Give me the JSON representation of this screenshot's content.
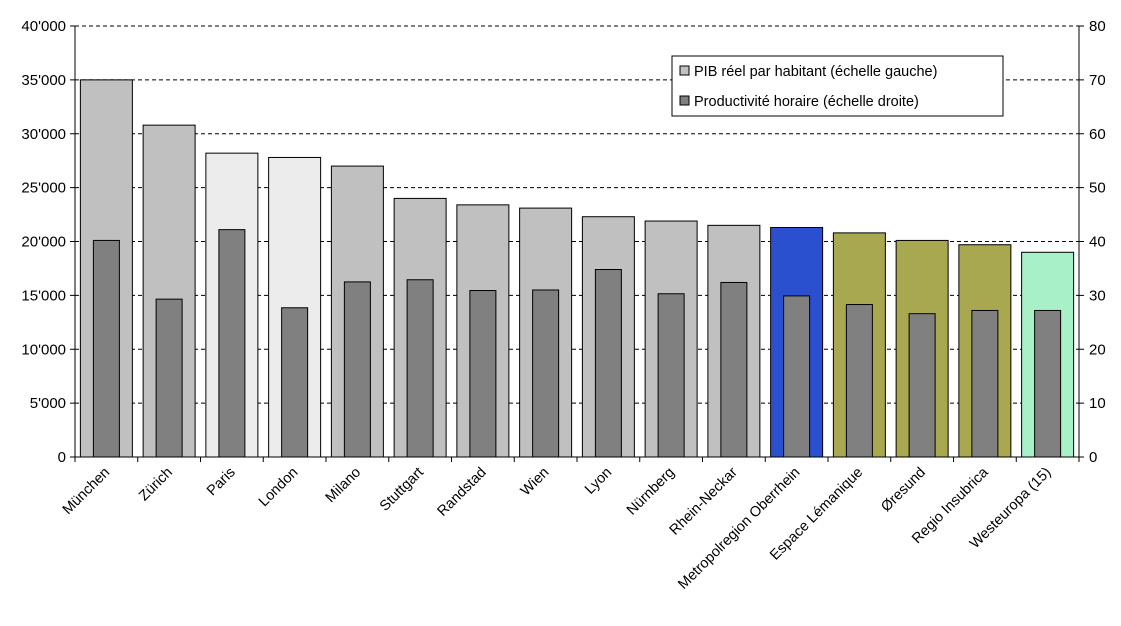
{
  "chart_data": {
    "type": "bar",
    "categories": [
      "München",
      "Zürich",
      "Paris",
      "London",
      "Milano",
      "Stuttgart",
      "Randstad",
      "Wien",
      "Lyon",
      "Nürnberg",
      "Rhein-Neckar",
      "Metropolregion Oberrhein",
      "Espace Lémanique",
      "Øresund",
      "Regio Insubrica",
      "Westeuropa (15)"
    ],
    "series": [
      {
        "name": "PIB réel par habitant (échelle gauche)",
        "axis": "left",
        "values": [
          35000,
          30800,
          28200,
          27800,
          27000,
          24000,
          23400,
          23100,
          22300,
          21900,
          21500,
          21300,
          20800,
          20100,
          19700,
          19000
        ],
        "colors": [
          "#c0c0c0",
          "#c0c0c0",
          "#ececec",
          "#ececec",
          "#c0c0c0",
          "#c0c0c0",
          "#c0c0c0",
          "#c0c0c0",
          "#c0c0c0",
          "#c0c0c0",
          "#c0c0c0",
          "#2a50d0",
          "#a8a850",
          "#a8a850",
          "#a8a850",
          "#a8f0c8"
        ]
      },
      {
        "name": "Productivité horaire (échelle droite)",
        "axis": "right",
        "values": [
          40.2,
          29.3,
          42.2,
          27.7,
          32.5,
          32.9,
          30.9,
          31.0,
          34.8,
          30.3,
          32.4,
          29.9,
          28.3,
          26.6,
          27.2,
          27.2
        ],
        "color": "#808080"
      }
    ],
    "left_axis": {
      "range": [
        0,
        40000
      ],
      "ticks": [
        "0",
        "5'000",
        "10'000",
        "15'000",
        "20'000",
        "25'000",
        "30'000",
        "35'000",
        "40'000"
      ]
    },
    "right_axis": {
      "range": [
        0,
        80
      ],
      "ticks": [
        "0",
        "10",
        "20",
        "30",
        "40",
        "50",
        "60",
        "70",
        "80"
      ]
    },
    "grid": true,
    "legend_position": "top-right"
  }
}
